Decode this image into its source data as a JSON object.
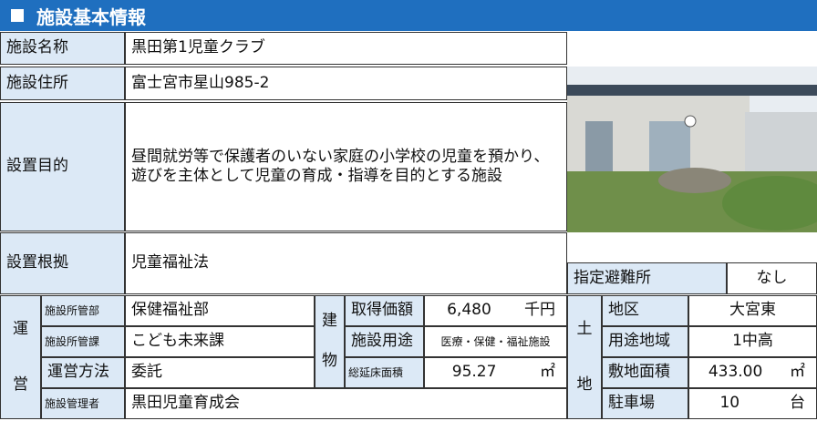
{
  "header": {
    "title": "施設基本情報"
  },
  "basic": [
    {
      "label": "施設名称",
      "value": "黒田第1児童クラブ"
    },
    {
      "label": "施設住所",
      "value": "富士宮市星山985-2"
    },
    {
      "label": "設置目的",
      "value": "昼間就労等で保護者のいない家庭の小学校の児童を預かり、遊びを主体として児童の育成・指導を目的とする施設"
    },
    {
      "label": "設置根拠",
      "value": "児童福祉法"
    }
  ],
  "evacuation": {
    "label": "指定避難所",
    "value": "なし"
  },
  "operation": {
    "label": [
      "運",
      "営"
    ],
    "rows": [
      {
        "label": "施設所管部",
        "value": "保健福祉部"
      },
      {
        "label": "施設所管課",
        "value": "こども未来課"
      },
      {
        "label": "運営方法",
        "value": "委託"
      },
      {
        "label": "施設管理者",
        "value": "黒田児童育成会"
      }
    ]
  },
  "building": {
    "label": [
      "建",
      "物"
    ],
    "rows": [
      {
        "label": "取得価額",
        "value": "6,480",
        "unit": "千円"
      },
      {
        "label": "施設用途",
        "value": "医療・保健・福祉施設"
      },
      {
        "label": "総延床面積",
        "value": "95.27",
        "unit": "㎡"
      }
    ]
  },
  "land": {
    "label": [
      "土",
      "地"
    ],
    "rows": [
      {
        "label": "地区",
        "value": "大宮東"
      },
      {
        "label": "用途地域",
        "value": "1中高"
      },
      {
        "label": "敷地面積",
        "value": "433.00",
        "unit": "㎡"
      },
      {
        "label": "駐車場",
        "value": "10",
        "unit": "台"
      }
    ]
  }
}
